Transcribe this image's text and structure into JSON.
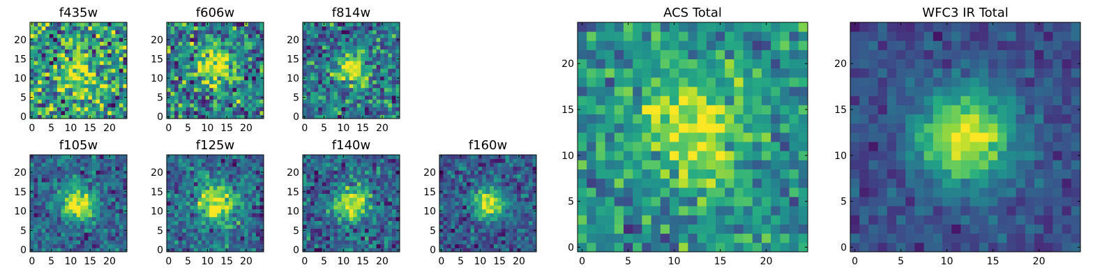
{
  "chart_data": [
    {
      "type": "heatmap",
      "title": "f435w",
      "colormap": "viridis",
      "xlim": [
        -0.5,
        24.5
      ],
      "ylim": [
        -0.5,
        24.5
      ],
      "xticks": [
        0,
        5,
        10,
        15,
        20
      ],
      "yticks": [
        0,
        5,
        10,
        15,
        20
      ],
      "xtick_labels": [
        "0",
        "5",
        "10",
        "15",
        "20"
      ],
      "ytick_labels": [
        "0",
        "5",
        "10",
        "15",
        "20"
      ],
      "grid_size": 25,
      "source_center": [
        12,
        12
      ],
      "source_width": 4,
      "peak": 0.8,
      "noise": 0.35,
      "background": 0.55
    },
    {
      "type": "heatmap",
      "title": "f606w",
      "colormap": "viridis",
      "xlim": [
        -0.5,
        24.5
      ],
      "ylim": [
        -0.5,
        24.5
      ],
      "xticks": [
        0,
        5,
        10,
        15,
        20
      ],
      "yticks": [
        0,
        5,
        10,
        15,
        20
      ],
      "xtick_labels": [
        "0",
        "5",
        "10",
        "15",
        "20"
      ],
      "ytick_labels": [
        "0",
        "5",
        "10",
        "15",
        "20"
      ],
      "grid_size": 25,
      "source_center": [
        12,
        13
      ],
      "source_width": 3.5,
      "peak": 1.0,
      "noise": 0.3,
      "background": 0.42
    },
    {
      "type": "heatmap",
      "title": "f814w",
      "colormap": "viridis",
      "xlim": [
        -0.5,
        24.5
      ],
      "ylim": [
        -0.5,
        24.5
      ],
      "xticks": [
        0,
        5,
        10,
        15,
        20
      ],
      "yticks": [
        0,
        5,
        10,
        15,
        20
      ],
      "xtick_labels": [
        "0",
        "5",
        "10",
        "15",
        "20"
      ],
      "ytick_labels": [
        "0",
        "5",
        "10",
        "15",
        "20"
      ],
      "grid_size": 25,
      "source_center": [
        12,
        12
      ],
      "source_width": 2.8,
      "peak": 1.0,
      "noise": 0.26,
      "background": 0.4
    },
    {
      "type": "heatmap",
      "title": "f105w",
      "colormap": "viridis",
      "xlim": [
        -0.5,
        24.5
      ],
      "ylim": [
        -0.5,
        24.5
      ],
      "xticks": [
        0,
        5,
        10,
        15,
        20
      ],
      "yticks": [
        0,
        5,
        10,
        15,
        20
      ],
      "xtick_labels": [
        "0",
        "5",
        "10",
        "15",
        "20"
      ],
      "ytick_labels": [
        "0",
        "5",
        "10",
        "15",
        "20"
      ],
      "grid_size": 25,
      "source_center": [
        12,
        12
      ],
      "source_width": 3.2,
      "peak": 1.0,
      "noise": 0.17,
      "background": 0.32
    },
    {
      "type": "heatmap",
      "title": "f125w",
      "colormap": "viridis",
      "xlim": [
        -0.5,
        24.5
      ],
      "ylim": [
        -0.5,
        24.5
      ],
      "xticks": [
        0,
        5,
        10,
        15,
        20
      ],
      "yticks": [
        0,
        5,
        10,
        15,
        20
      ],
      "xtick_labels": [
        "0",
        "5",
        "10",
        "15",
        "20"
      ],
      "ytick_labels": [
        "0",
        "5",
        "10",
        "15",
        "20"
      ],
      "grid_size": 25,
      "source_center": [
        12,
        12
      ],
      "source_width": 3.6,
      "peak": 1.0,
      "noise": 0.2,
      "background": 0.34
    },
    {
      "type": "heatmap",
      "title": "f140w",
      "colormap": "viridis",
      "xlim": [
        -0.5,
        24.5
      ],
      "ylim": [
        -0.5,
        24.5
      ],
      "xticks": [
        0,
        5,
        10,
        15,
        20
      ],
      "yticks": [
        0,
        5,
        10,
        15,
        20
      ],
      "xtick_labels": [
        "0",
        "5",
        "10",
        "15",
        "20"
      ],
      "ytick_labels": [
        "0",
        "5",
        "10",
        "15",
        "20"
      ],
      "grid_size": 25,
      "source_center": [
        12,
        12
      ],
      "source_width": 3.2,
      "peak": 1.0,
      "noise": 0.2,
      "background": 0.32
    },
    {
      "type": "heatmap",
      "title": "f160w",
      "colormap": "viridis",
      "xlim": [
        -0.5,
        24.5
      ],
      "ylim": [
        -0.5,
        24.5
      ],
      "xticks": [
        0,
        5,
        10,
        15,
        20
      ],
      "yticks": [
        0,
        5,
        10,
        15,
        20
      ],
      "xtick_labels": [
        "0",
        "5",
        "10",
        "15",
        "20"
      ],
      "ytick_labels": [
        "0",
        "5",
        "10",
        "15",
        "20"
      ],
      "grid_size": 25,
      "source_center": [
        12,
        12
      ],
      "source_width": 2.8,
      "peak": 1.0,
      "noise": 0.17,
      "background": 0.28
    },
    {
      "type": "heatmap",
      "title": "ACS Total",
      "colormap": "viridis",
      "xlim": [
        -0.5,
        24.5
      ],
      "ylim": [
        -0.5,
        24.5
      ],
      "xticks": [
        0,
        5,
        10,
        15,
        20
      ],
      "yticks": [
        0,
        5,
        10,
        15,
        20
      ],
      "xtick_labels": [
        "0",
        "5",
        "10",
        "15",
        "20"
      ],
      "ytick_labels": [
        "0",
        "5",
        "10",
        "15",
        "20"
      ],
      "grid_size": 25,
      "source_center": [
        12,
        13
      ],
      "source_width": 4.0,
      "peak": 0.95,
      "noise": 0.2,
      "background": 0.5
    },
    {
      "type": "heatmap",
      "title": "WFC3 IR Total",
      "colormap": "viridis",
      "xlim": [
        -0.5,
        24.5
      ],
      "ylim": [
        -0.5,
        24.5
      ],
      "xticks": [
        0,
        5,
        10,
        15,
        20
      ],
      "yticks": [
        0,
        5,
        10,
        15,
        20
      ],
      "xtick_labels": [
        "0",
        "5",
        "10",
        "15",
        "20"
      ],
      "ytick_labels": [
        "0",
        "5",
        "10",
        "15",
        "20"
      ],
      "grid_size": 25,
      "source_center": [
        12,
        12
      ],
      "source_width": 3.6,
      "peak": 1.0,
      "noise": 0.1,
      "background": 0.24
    }
  ]
}
